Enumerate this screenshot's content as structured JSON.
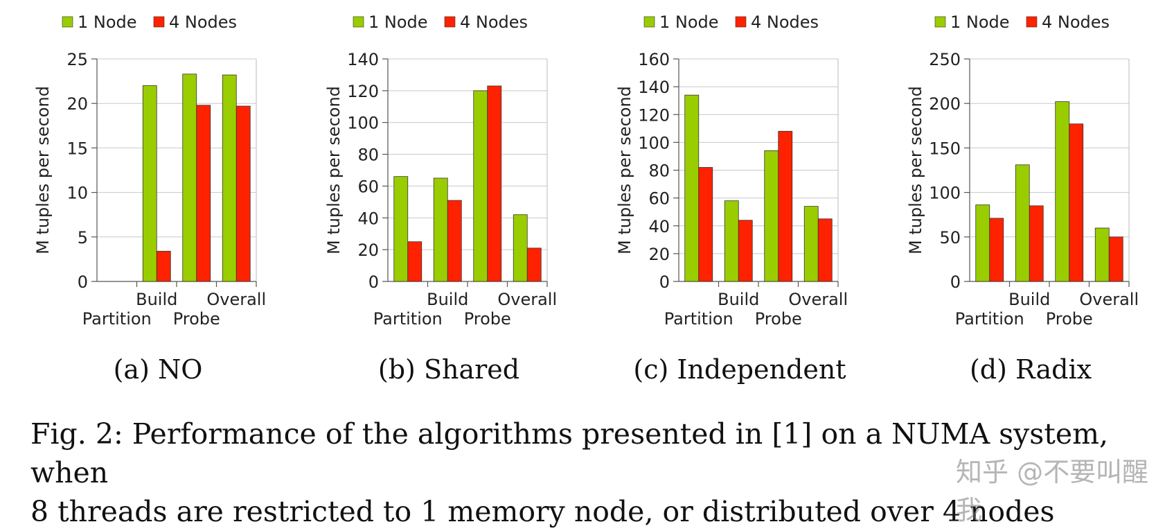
{
  "legend": {
    "items": [
      {
        "label": "1 Node",
        "color": "#9acd00"
      },
      {
        "label": "4 Nodes",
        "color": "#ff2200"
      }
    ]
  },
  "chart_data": [
    {
      "type": "bar",
      "subtitle": "(a) NO",
      "ylabel": "M tuples per second",
      "ylim": [
        0,
        25
      ],
      "yticks": [
        0,
        5,
        10,
        15,
        20,
        25
      ],
      "categories": [
        "Partition",
        "Build",
        "Probe",
        "Overall"
      ],
      "series": [
        {
          "name": "1 Node",
          "values": [
            0,
            22,
            23.3,
            23.2
          ]
        },
        {
          "name": "4 Nodes",
          "values": [
            0,
            3.4,
            19.8,
            19.7
          ]
        }
      ],
      "grid": true,
      "legend": "top"
    },
    {
      "type": "bar",
      "subtitle": "(b) Shared",
      "ylabel": "M tuples per second",
      "ylim": [
        0,
        140
      ],
      "yticks": [
        0,
        20,
        40,
        60,
        80,
        100,
        120,
        140
      ],
      "categories": [
        "Partition",
        "Build",
        "Probe",
        "Overall"
      ],
      "series": [
        {
          "name": "1 Node",
          "values": [
            66,
            65,
            120,
            42
          ]
        },
        {
          "name": "4 Nodes",
          "values": [
            25,
            51,
            123,
            21
          ]
        }
      ],
      "grid": true,
      "legend": "top"
    },
    {
      "type": "bar",
      "subtitle": "(c) Independent",
      "ylabel": "M tuples per second",
      "ylim": [
        0,
        160
      ],
      "yticks": [
        0,
        20,
        40,
        60,
        80,
        100,
        120,
        140,
        160
      ],
      "categories": [
        "Partition",
        "Build",
        "Probe",
        "Overall"
      ],
      "series": [
        {
          "name": "1 Node",
          "values": [
            134,
            58,
            94,
            54
          ]
        },
        {
          "name": "4 Nodes",
          "values": [
            82,
            44,
            108,
            45
          ]
        }
      ],
      "grid": true,
      "legend": "top"
    },
    {
      "type": "bar",
      "subtitle": "(d) Radix",
      "ylabel": "M tuples per second",
      "ylim": [
        0,
        250
      ],
      "yticks": [
        0,
        50,
        100,
        150,
        200,
        250
      ],
      "categories": [
        "Partition",
        "Build",
        "Probe",
        "Overall"
      ],
      "series": [
        {
          "name": "1 Node",
          "values": [
            86,
            131,
            202,
            60
          ]
        },
        {
          "name": "4 Nodes",
          "values": [
            71,
            85,
            177,
            50
          ]
        }
      ],
      "grid": true,
      "legend": "top"
    }
  ],
  "caption": {
    "line1": "Fig. 2: Performance of the algorithms presented in [1] on a NUMA system, when",
    "line2": "8 threads are restricted to 1 memory node, or distributed over 4 nodes"
  },
  "watermark": "知乎 @不要叫醒我"
}
